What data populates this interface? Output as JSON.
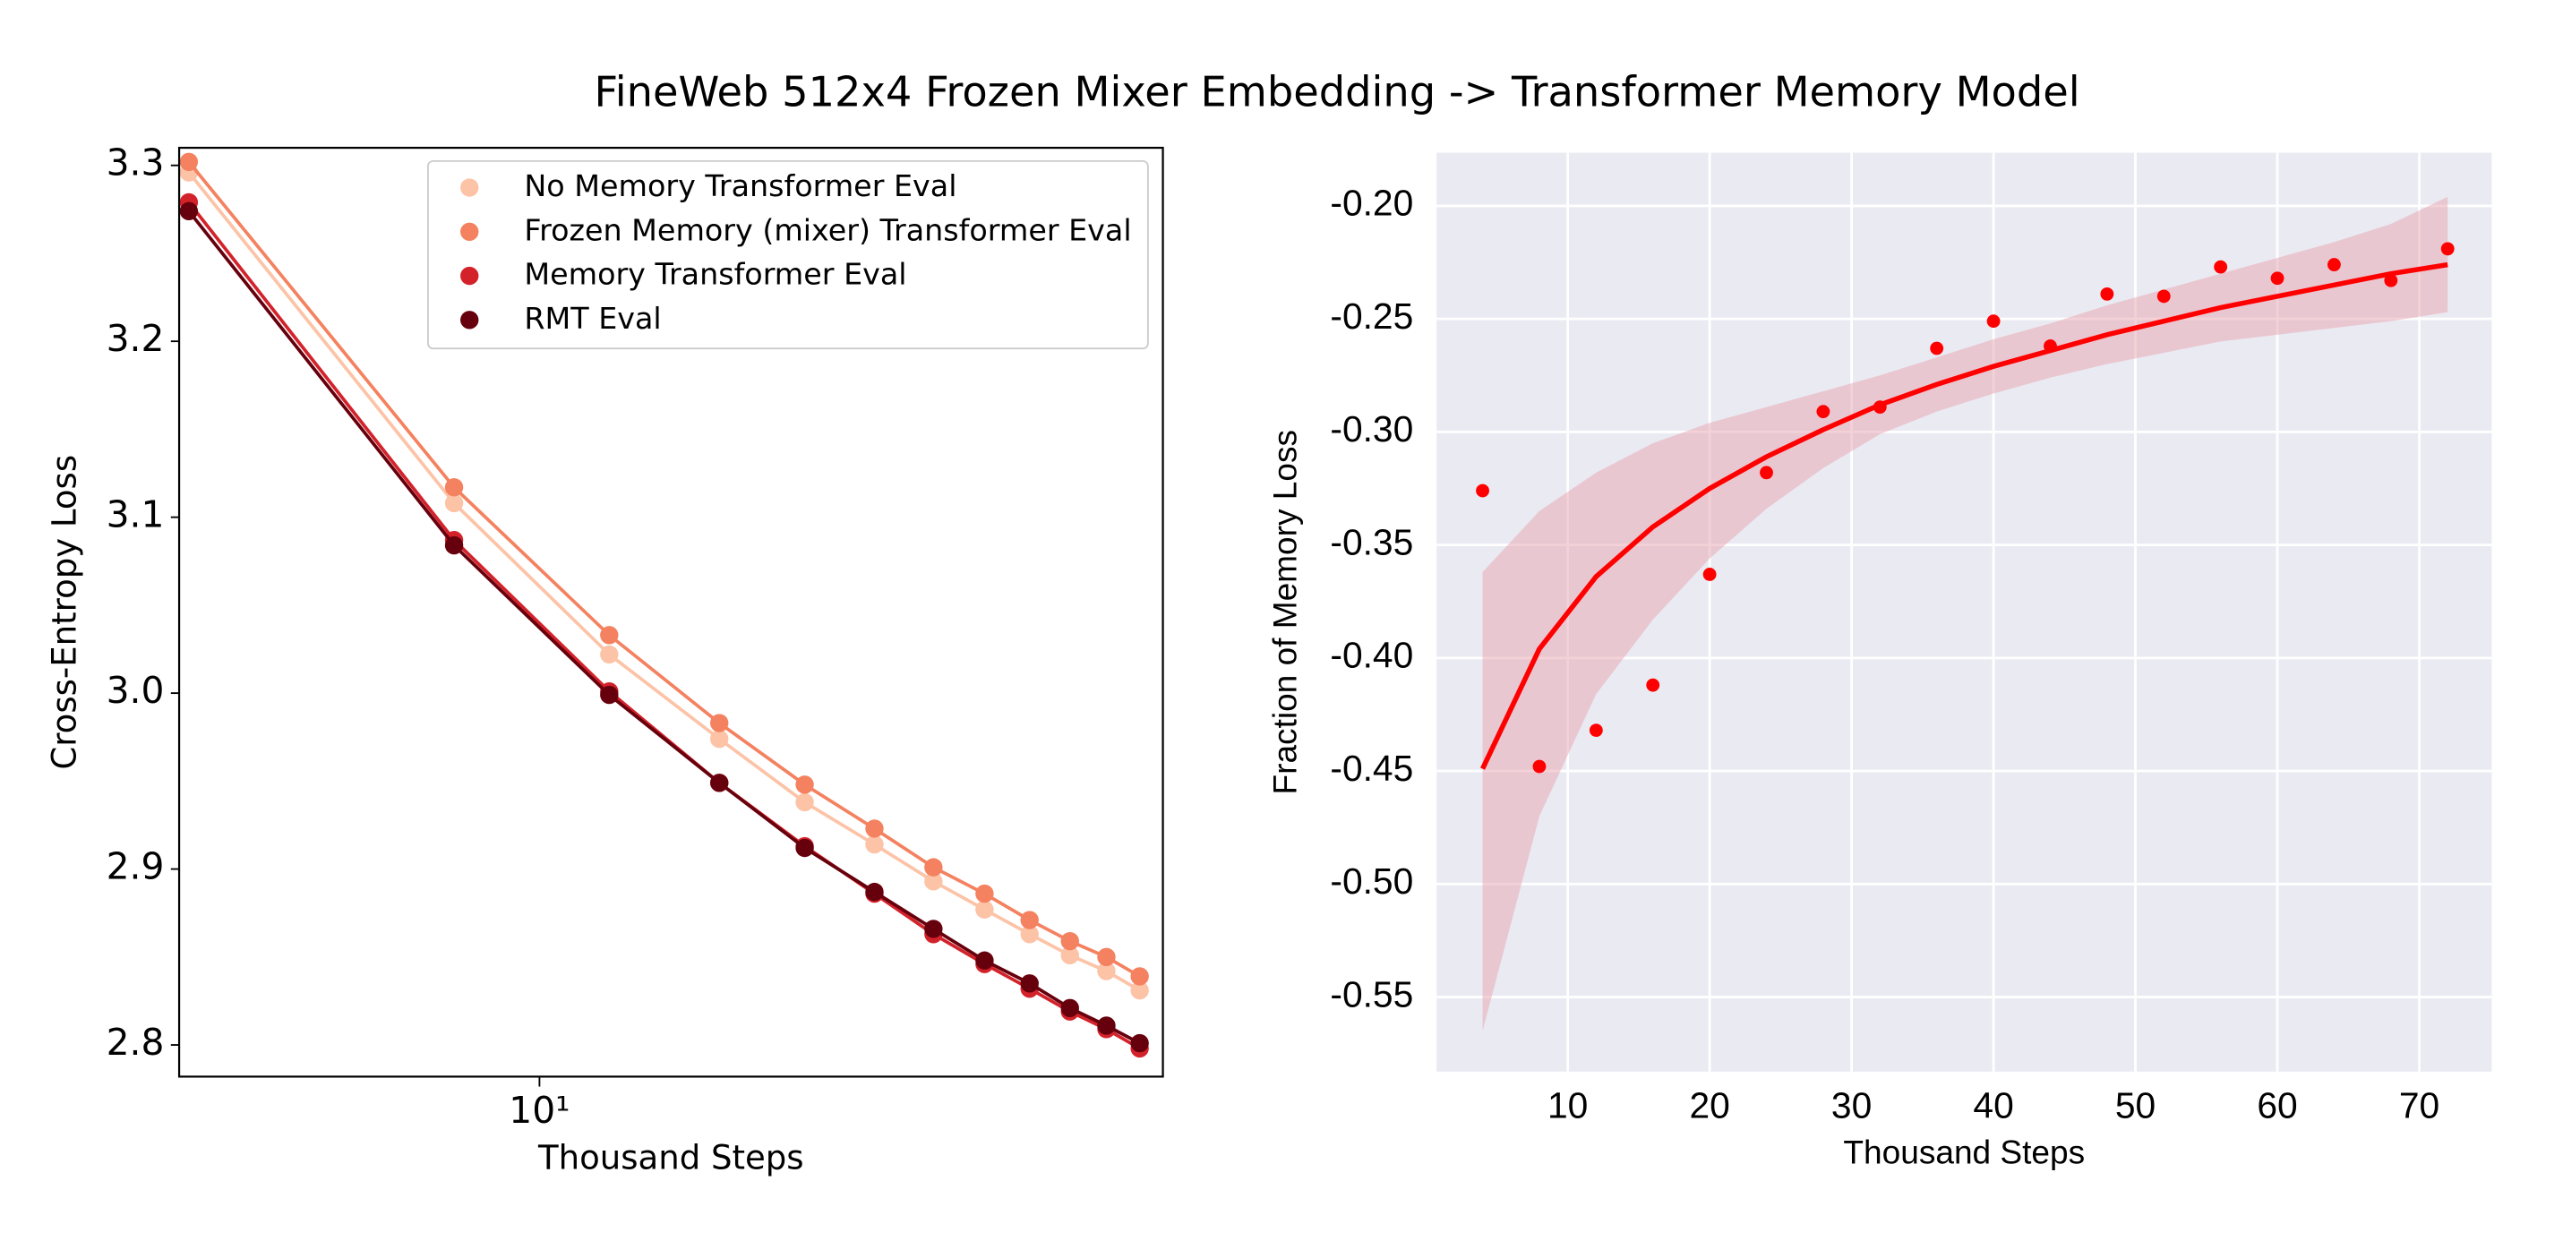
{
  "title": "FineWeb 512x4 Frozen Mixer Embedding -> Transformer Memory Model",
  "chart_data": [
    {
      "type": "line",
      "xlabel": "Thousand Steps",
      "ylabel": "Cross-Entropy Loss",
      "xscale": "log",
      "x": [
        4,
        8,
        12,
        16,
        20,
        24,
        28,
        32,
        36,
        40,
        44,
        48
      ],
      "xlim": [
        3.9,
        51
      ],
      "ylim": [
        2.782,
        3.31
      ],
      "xticks": [
        {
          "value": 10,
          "label": "10¹"
        }
      ],
      "yticks": [
        2.8,
        2.9,
        {
          "value": 3.0,
          "label": "3.0"
        },
        3.1,
        3.2,
        3.3
      ],
      "grid": false,
      "legend": "upper right",
      "series": [
        {
          "name": "No Memory Transformer Eval",
          "color": "#fcc3a7",
          "values": [
            3.296,
            3.108,
            3.022,
            2.974,
            2.938,
            2.914,
            2.893,
            2.877,
            2.863,
            2.851,
            2.842,
            2.831
          ]
        },
        {
          "name": "Frozen Memory (mixer) Transformer Eval",
          "color": "#f4815f",
          "values": [
            3.302,
            3.117,
            3.033,
            2.983,
            2.948,
            2.923,
            2.901,
            2.886,
            2.871,
            2.859,
            2.85,
            2.839
          ]
        },
        {
          "name": "Memory Transformer Eval",
          "color": "#d3222a",
          "values": [
            3.279,
            3.087,
            3.001,
            2.949,
            2.913,
            2.886,
            2.863,
            2.846,
            2.832,
            2.819,
            2.809,
            2.798
          ]
        },
        {
          "name": "RMT Eval",
          "color": "#67000d",
          "values": [
            3.274,
            3.084,
            2.999,
            2.949,
            2.912,
            2.887,
            2.866,
            2.848,
            2.835,
            2.821,
            2.811,
            2.801
          ]
        }
      ]
    },
    {
      "type": "scatter",
      "xlabel": "Thousand Steps",
      "ylabel": "Fraction of Memory Loss",
      "xlim": [
        0.76,
        75.1
      ],
      "ylim": [
        -0.583,
        -0.1765
      ],
      "xticks": [
        10,
        20,
        30,
        40,
        50,
        60,
        70
      ],
      "yticks": [
        {
          "value": -0.2,
          "label": "-0.20"
        },
        {
          "value": -0.25,
          "label": "-0.25"
        },
        {
          "value": -0.3,
          "label": "-0.30"
        },
        {
          "value": -0.35,
          "label": "-0.35"
        },
        {
          "value": -0.4,
          "label": "-0.40"
        },
        {
          "value": -0.45,
          "label": "-0.45"
        },
        {
          "value": -0.5,
          "label": "-0.50"
        },
        {
          "value": -0.55,
          "label": "-0.55"
        }
      ],
      "grid": true,
      "color": "#ff0000",
      "band_color": "#e8a3b0",
      "x": [
        4,
        8,
        12,
        16,
        20,
        24,
        28,
        32,
        36,
        40,
        44,
        48,
        52,
        56,
        60,
        64,
        68,
        72
      ],
      "values": [
        -0.326,
        -0.448,
        -0.432,
        -0.412,
        -0.363,
        -0.318,
        -0.291,
        -0.289,
        -0.263,
        -0.251,
        -0.262,
        -0.239,
        -0.24,
        -0.227,
        -0.232,
        -0.226,
        -0.233,
        -0.219
      ],
      "fit": {
        "x": [
          4,
          8,
          12,
          16,
          20,
          24,
          28,
          32,
          36,
          40,
          44,
          48,
          52,
          56,
          60,
          64,
          68,
          72
        ],
        "values": [
          -0.449,
          -0.396,
          -0.364,
          -0.342,
          -0.325,
          -0.311,
          -0.299,
          -0.288,
          -0.279,
          -0.271,
          -0.264,
          -0.257,
          -0.251,
          -0.245,
          -0.24,
          -0.235,
          -0.23,
          -0.226
        ],
        "lower": [
          -0.565,
          -0.47,
          -0.416,
          -0.383,
          -0.356,
          -0.334,
          -0.316,
          -0.301,
          -0.291,
          -0.283,
          -0.276,
          -0.27,
          -0.265,
          -0.26,
          -0.257,
          -0.254,
          -0.251,
          -0.247
        ],
        "upper": [
          -0.362,
          -0.335,
          -0.318,
          -0.305,
          -0.296,
          -0.289,
          -0.282,
          -0.275,
          -0.267,
          -0.259,
          -0.252,
          -0.244,
          -0.237,
          -0.23,
          -0.223,
          -0.216,
          -0.208,
          -0.196
        ]
      }
    }
  ]
}
